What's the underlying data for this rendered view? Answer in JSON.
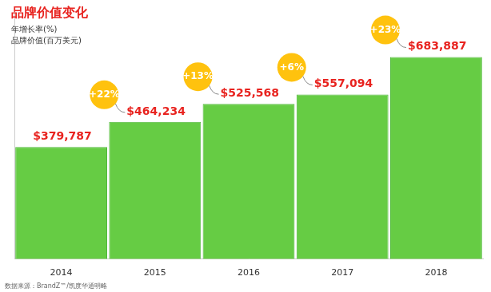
{
  "chart_data": {
    "type": "bar",
    "title": "品牌价值变化",
    "subtitle": [
      "年增长率(%)",
      "品牌价值(百万美元)"
    ],
    "source": "数据来源：BrandZ™/凯度华通明略",
    "categories": [
      "2014",
      "2015",
      "2016",
      "2017",
      "2018"
    ],
    "values": [
      379787,
      464234,
      525568,
      557094,
      683887
    ],
    "value_labels": [
      "$379,787",
      "$464,234",
      "$525,568",
      "$557,094",
      "$683,887"
    ],
    "data_labels": true,
    "annotations": [
      {
        "category": "2015",
        "text": "+22%"
      },
      {
        "category": "2016",
        "text": "+13%"
      },
      {
        "category": "2017",
        "text": "+6%"
      },
      {
        "category": "2018",
        "text": "+23%"
      }
    ],
    "color": "#66cc44",
    "ylim": [
      0,
      850000
    ],
    "grid": false,
    "legend": false,
    "tick_labels": "x"
  }
}
